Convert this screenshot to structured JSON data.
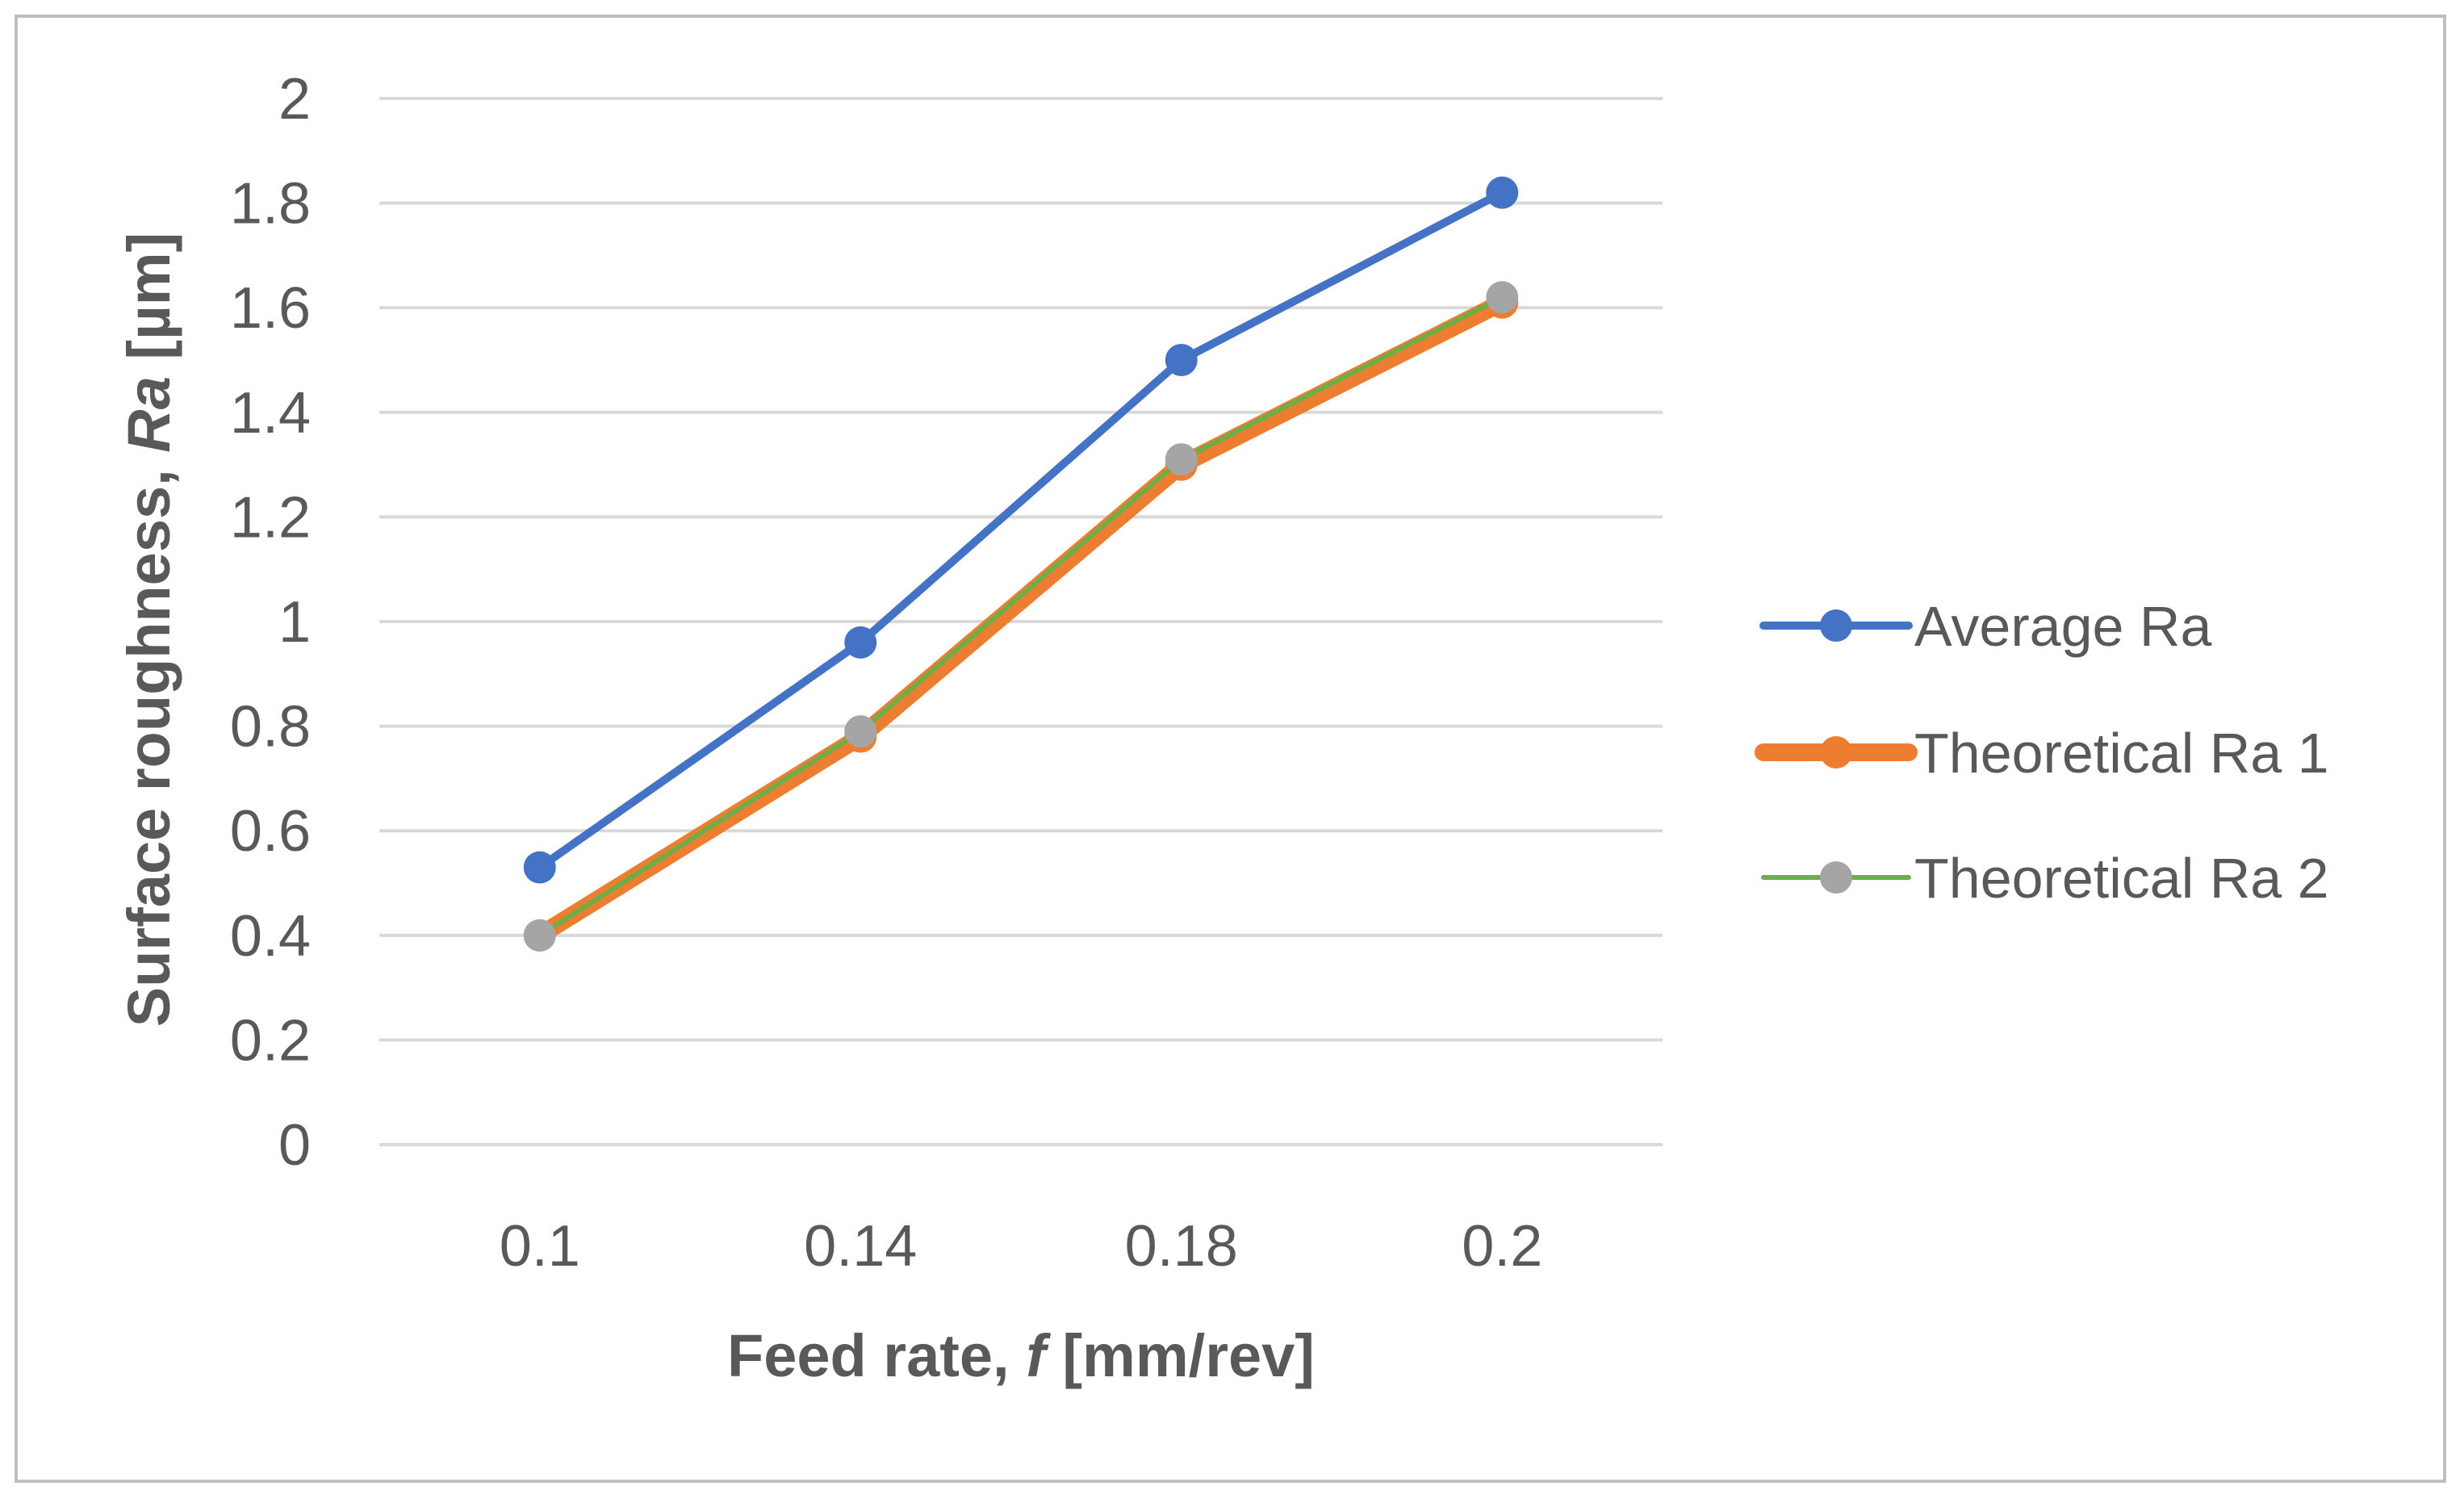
{
  "chart_data": {
    "type": "line",
    "x_categories": [
      "0.1",
      "0.14",
      "0.18",
      "0.2"
    ],
    "xlabel": {
      "prefix": "Feed rate, ",
      "symbol": "f",
      "suffix": " [mm/rev]"
    },
    "ylabel": {
      "prefix": "Surface roughness, ",
      "symbol": "Ra",
      "suffix": " [µm]"
    },
    "ylim": [
      0,
      2
    ],
    "y_ticks": [
      "0",
      "0.2",
      "0.4",
      "0.6",
      "0.8",
      "1",
      "1.2",
      "1.4",
      "1.6",
      "1.8",
      "2"
    ],
    "grid": true,
    "legend_position": "right",
    "series": [
      {
        "name": "Average Ra",
        "values": [
          0.53,
          0.96,
          1.5,
          1.82
        ],
        "color": "#4472c4",
        "marker_color": "#4472c4",
        "line_width": 10
      },
      {
        "name": "Theoretical Ra 1",
        "values": [
          0.4,
          0.78,
          1.3,
          1.61
        ],
        "color": "#ed7d31",
        "marker_color": "#ed7d31",
        "line_width": 22
      },
      {
        "name": "Theoretical Ra 2",
        "values": [
          0.4,
          0.79,
          1.31,
          1.62
        ],
        "color": "#70ad47",
        "marker_color": "#a5a5a5",
        "line_width": 6
      }
    ]
  }
}
